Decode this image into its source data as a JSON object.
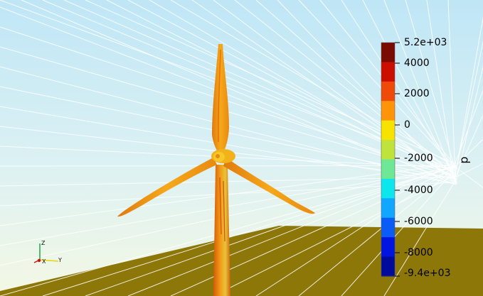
{
  "colorbar": {
    "title": "p",
    "labels": [
      "5.2e+03",
      "4000",
      "2000",
      "0",
      "-2000",
      "-4000",
      "-6000",
      "-8000",
      "-9.4e+03"
    ],
    "colors": [
      "#7a0a00",
      "#cc0e00",
      "#f04a0a",
      "#ff9408",
      "#f7e200",
      "#bfe33a",
      "#6ee895",
      "#0ee6ee",
      "#11a6ff",
      "#0a5cf5",
      "#0016e0",
      "#000b9c"
    ]
  },
  "axes_triad": {
    "z_label": "Z",
    "x_label": "X",
    "y_label": "Y"
  },
  "colors": {
    "sky_top": "#bde6f6",
    "sky_bottom": "#f2f8e7",
    "ground": "#8c7708",
    "turbine_main": "#e88a12",
    "turbine_yellow": "#f6c20c"
  }
}
